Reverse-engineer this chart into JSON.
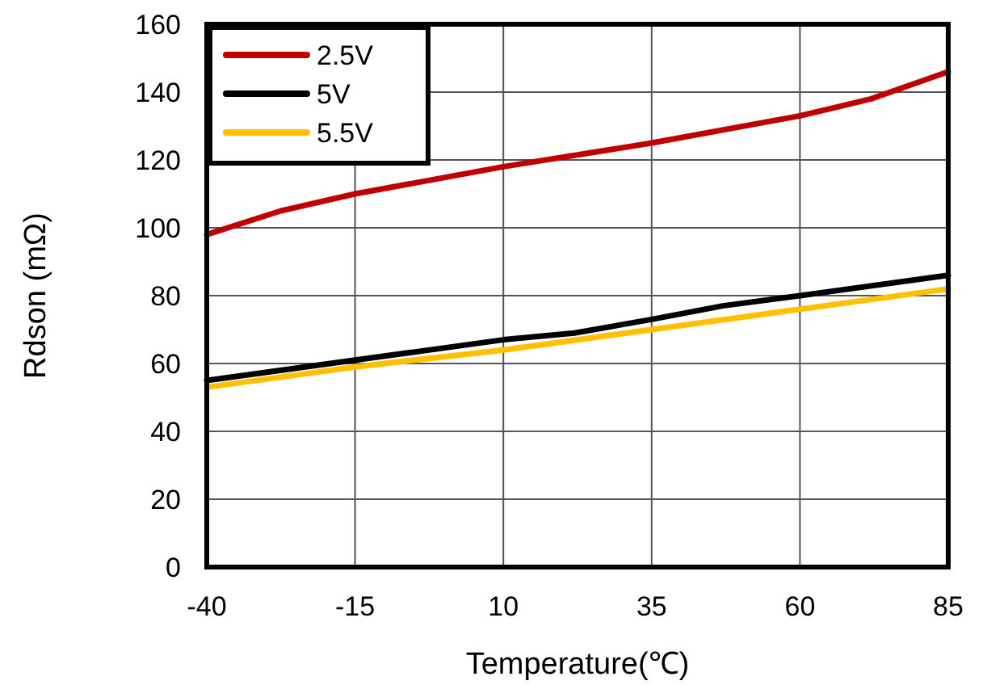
{
  "chart_data": {
    "type": "line",
    "xlabel": "Temperature(℃)",
    "ylabel": "Rdson (mΩ)",
    "xlim": [
      -40,
      85
    ],
    "xticks": [
      -40,
      -15,
      10,
      35,
      60,
      85
    ],
    "ylim": [
      0,
      160
    ],
    "yticks": [
      0,
      20,
      40,
      60,
      80,
      100,
      120,
      140,
      160
    ],
    "grid": true,
    "legend": "top left",
    "line_style": "solid",
    "marker": "none",
    "series": [
      {
        "name": "2.5V",
        "color": "#c00000",
        "x": [
          -40,
          -27.5,
          -15,
          10,
          35,
          60,
          72,
          85
        ],
        "values": [
          98,
          105,
          110,
          118,
          125,
          133,
          138,
          146
        ]
      },
      {
        "name": "5V",
        "color": "#000000",
        "x": [
          -40,
          -15,
          10,
          22,
          35,
          47,
          60,
          85
        ],
        "values": [
          55,
          61,
          67,
          69,
          73,
          77,
          80,
          86
        ]
      },
      {
        "name": "5.5V",
        "color": "#ffc000",
        "x": [
          -40,
          -15,
          10,
          35,
          60,
          85
        ],
        "values": [
          53,
          59,
          64,
          70,
          76,
          82
        ]
      }
    ]
  }
}
